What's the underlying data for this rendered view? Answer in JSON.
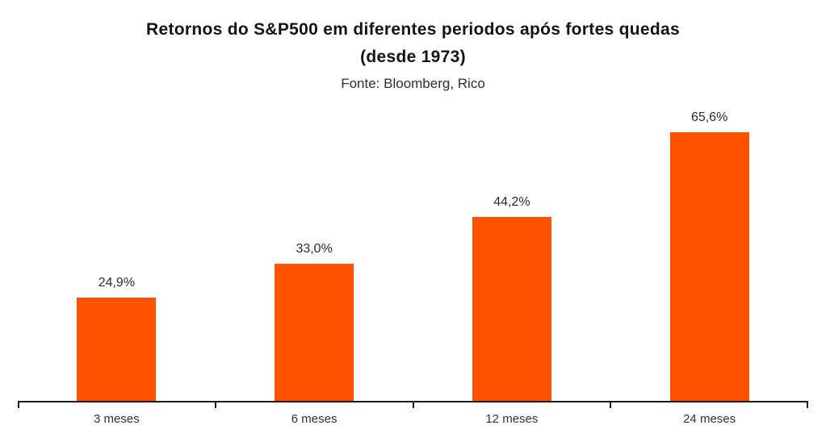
{
  "header": {
    "title_line1": "Retornos do S&P500 em diferentes periodos após fortes quedas",
    "title_line2": "(desde 1973)",
    "subtitle": "Fonte: Bloomberg, Rico"
  },
  "chart_data": {
    "type": "bar",
    "title": "Retornos do S&P500 em diferentes periodos após fortes quedas (desde 1973)",
    "subtitle": "Fonte: Bloomberg, Rico",
    "categories": [
      "3 meses",
      "6 meses",
      "12 meses",
      "24 meses"
    ],
    "values": [
      24.9,
      33.0,
      44.2,
      65.6
    ],
    "value_labels": [
      "24,9%",
      "33,0%",
      "44,2%",
      "65,6%"
    ],
    "xlabel": "",
    "ylabel": "",
    "ylim": [
      0,
      70
    ],
    "grid": false,
    "legend": false,
    "y_axis_visible": false,
    "colors": {
      "bar": "#FF5200",
      "axis": "#1c1c1c",
      "value_label_text": "#2b2b2b",
      "category_label_text": "#333333",
      "title_text": "#141414",
      "background": "#ffffff"
    }
  }
}
